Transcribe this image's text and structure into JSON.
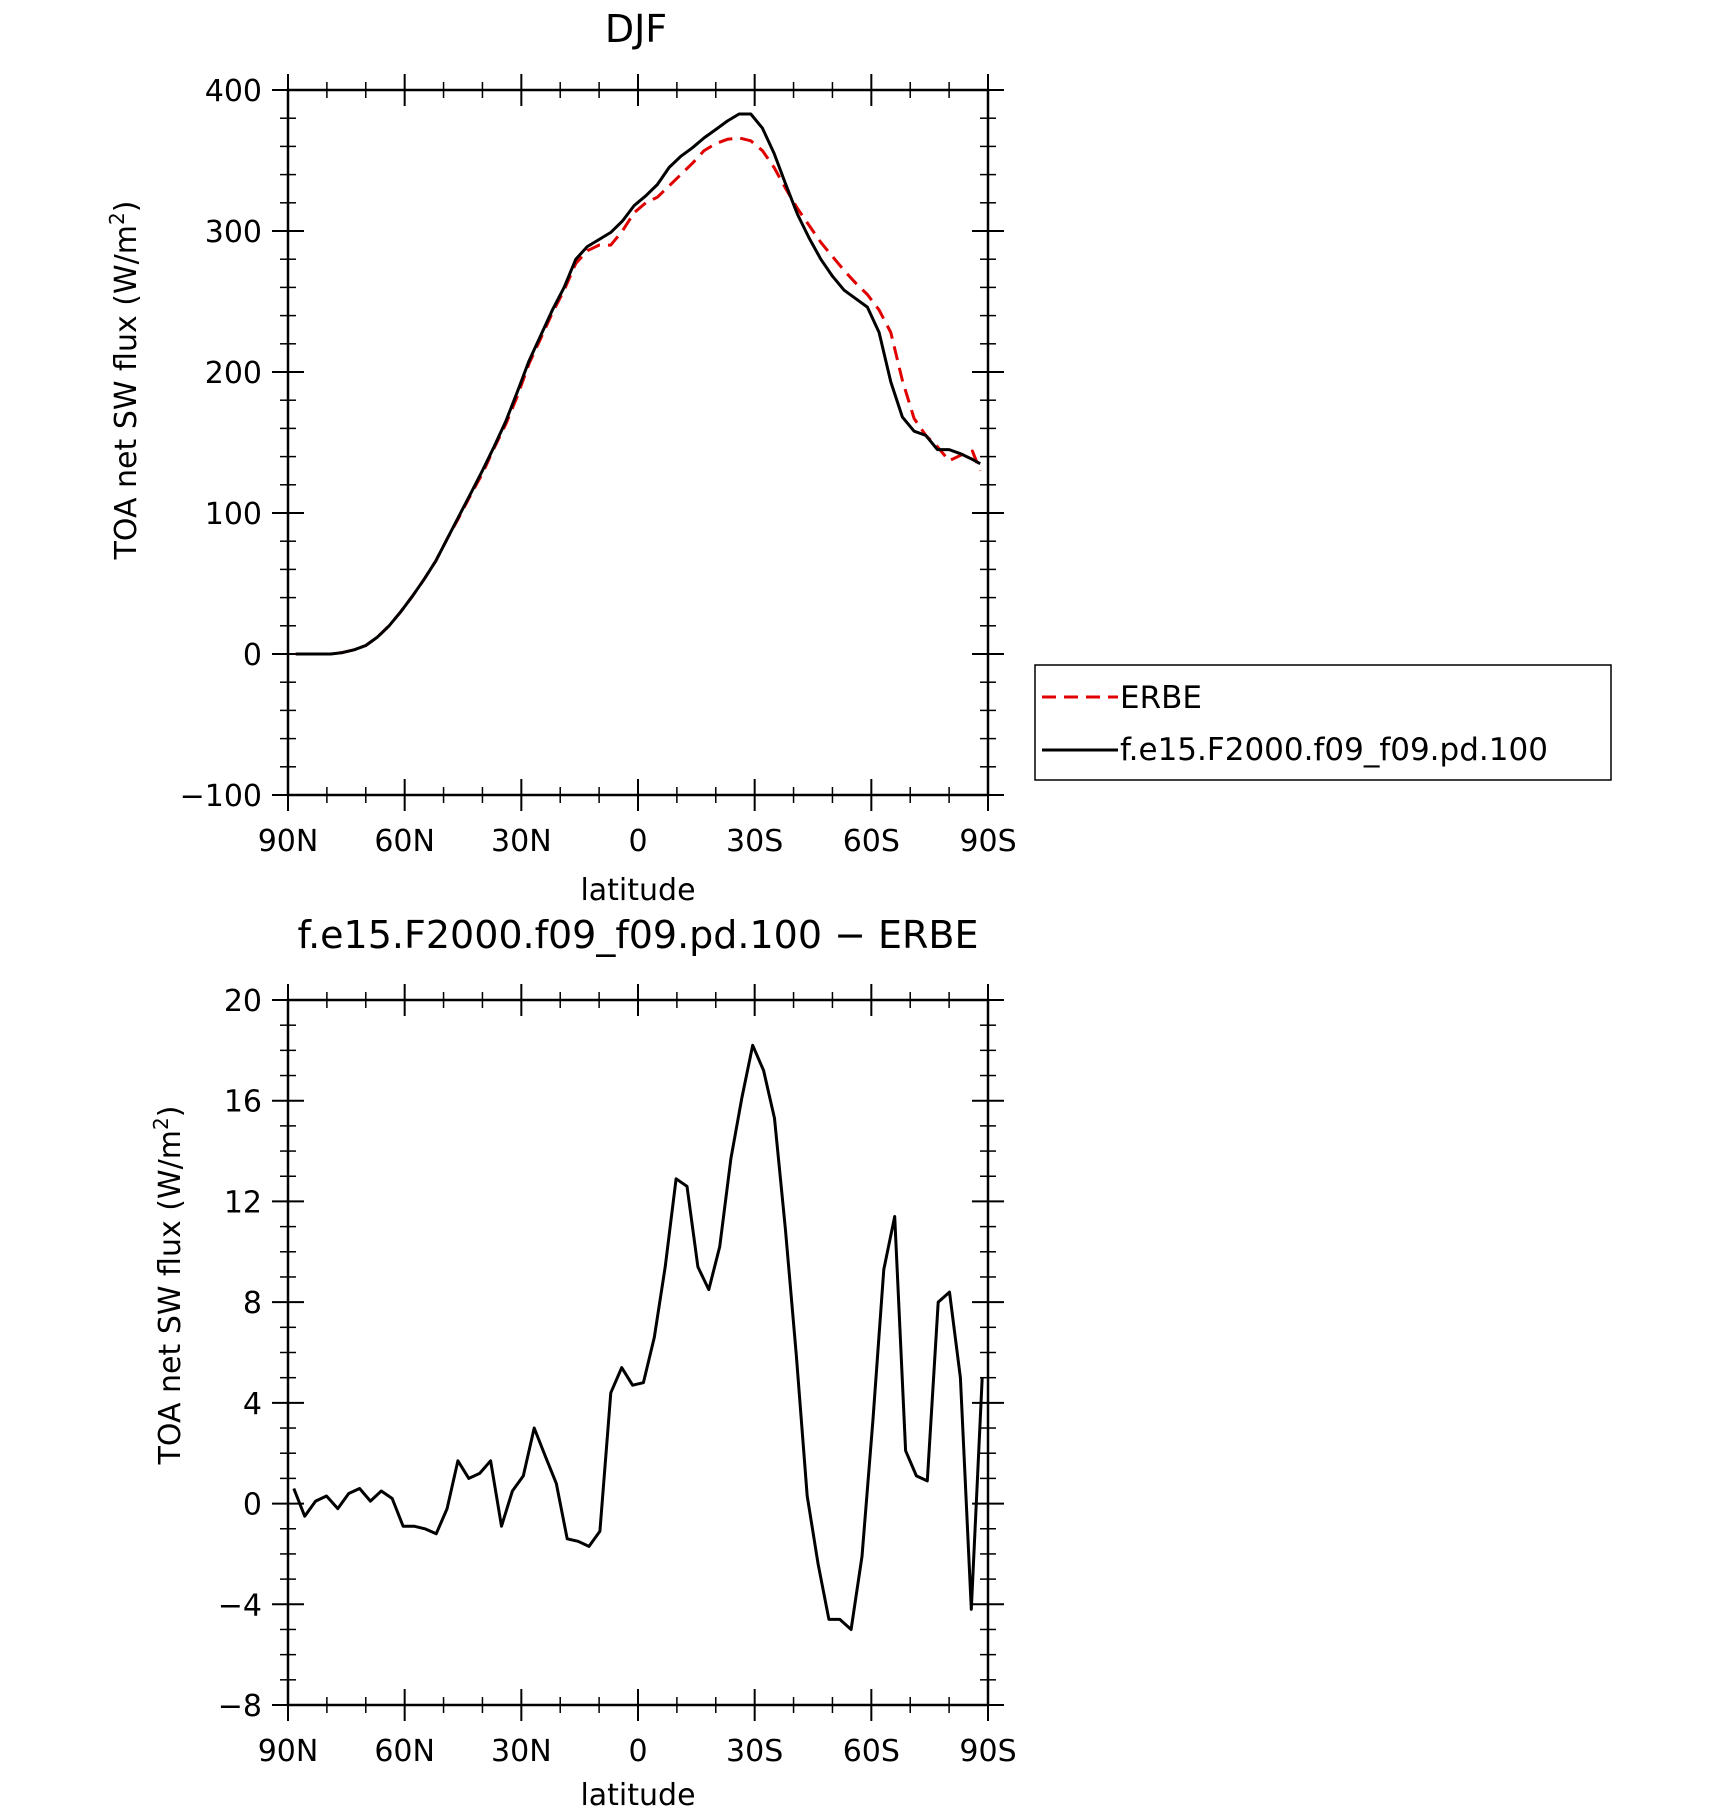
{
  "chart_data": [
    {
      "type": "line",
      "title": "DJF",
      "xlabel": "latitude",
      "ylabel": "TOA net SW flux (W/m",
      "ylabel_sup": "2",
      "ylabel_close": ")",
      "xlim": [
        90,
        -90
      ],
      "ylim": [
        -100,
        400
      ],
      "yticks": [
        {
          "value": 400,
          "label": "400"
        },
        {
          "value": 300,
          "label": "300"
        },
        {
          "value": 200,
          "label": "200"
        },
        {
          "value": 100,
          "label": "100"
        },
        {
          "value": 0,
          "label": "0"
        },
        {
          "value": -100,
          "label": "−100"
        }
      ],
      "xticks": [
        {
          "value": 90,
          "label": "90N"
        },
        {
          "value": 60,
          "label": "60N"
        },
        {
          "value": 30,
          "label": "30N"
        },
        {
          "value": 0,
          "label": "0"
        },
        {
          "value": -30,
          "label": "30S"
        },
        {
          "value": -60,
          "label": "60S"
        },
        {
          "value": -90,
          "label": "90S"
        }
      ],
      "legend": {
        "position": "right",
        "entries": [
          {
            "name": "ERBE",
            "color": "#e00000",
            "dash": "dashed"
          },
          {
            "name": "f.e15.F2000.f09_f09.pd.100",
            "color": "#000000",
            "dash": "solid"
          }
        ]
      },
      "series": [
        {
          "name": "ERBE",
          "color": "#e00000",
          "x": [
            88,
            85,
            82,
            79,
            76,
            73,
            70,
            67,
            64,
            61,
            58,
            55,
            52,
            49,
            46,
            43,
            40,
            37,
            34,
            31,
            28,
            25,
            22,
            19,
            16,
            13,
            10,
            7,
            4,
            1,
            -2,
            -5,
            -8,
            -11,
            -14,
            -17,
            -20,
            -23,
            -26,
            -29,
            -32,
            -35,
            -38,
            -41,
            -44,
            -47,
            -50,
            -53,
            -56,
            -59,
            -62,
            -65,
            -68,
            -71,
            -74,
            -77,
            -80,
            -83,
            -86,
            -88
          ],
          "y": [
            0,
            0,
            0,
            0,
            1,
            3,
            6,
            12,
            20,
            30,
            41,
            53,
            66,
            82,
            97,
            113,
            128,
            146,
            163,
            183,
            206,
            224,
            242,
            258,
            277,
            286,
            290,
            290,
            300,
            313,
            320,
            324,
            332,
            340,
            348,
            357,
            362,
            365,
            366,
            364,
            357,
            345,
            330,
            316,
            304,
            292,
            282,
            272,
            263,
            255,
            244,
            228,
            194,
            167,
            155,
            147,
            137,
            141,
            144,
            130
          ]
        },
        {
          "name": "f.e15.F2000.f09_f09.pd.100",
          "color": "#000000",
          "x": [
            88,
            85,
            82,
            79,
            76,
            73,
            70,
            67,
            64,
            61,
            58,
            55,
            52,
            49,
            46,
            43,
            40,
            37,
            34,
            31,
            28,
            25,
            22,
            19,
            16,
            13,
            10,
            7,
            4,
            1,
            -2,
            -5,
            -8,
            -11,
            -14,
            -17,
            -20,
            -23,
            -26,
            -29,
            -32,
            -35,
            -38,
            -41,
            -44,
            -47,
            -50,
            -53,
            -56,
            -59,
            -62,
            -65,
            -68,
            -71,
            -74,
            -77,
            -80,
            -83,
            -86,
            -88
          ],
          "y": [
            0,
            0,
            0,
            0,
            1,
            3,
            6,
            12,
            20,
            30,
            41,
            53,
            66,
            82,
            98,
            114,
            130,
            147,
            165,
            186,
            208,
            226,
            244,
            260,
            280,
            289,
            294,
            299,
            307,
            318,
            325,
            333,
            345,
            353,
            359,
            366,
            372,
            378,
            383,
            383,
            373,
            355,
            333,
            312,
            295,
            280,
            268,
            258,
            252,
            246,
            228,
            193,
            168,
            158,
            155,
            145,
            145,
            142,
            138,
            135
          ]
        }
      ]
    },
    {
      "type": "line",
      "title": "f.e15.F2000.f09_f09.pd.100 − ERBE",
      "xlabel": "latitude",
      "ylabel": "TOA net SW flux (W/m",
      "ylabel_sup": "2",
      "ylabel_close": ")",
      "xlim": [
        90,
        -90
      ],
      "ylim": [
        -8,
        20
      ],
      "yticks": [
        {
          "value": 20,
          "label": "20"
        },
        {
          "value": 16,
          "label": "16"
        },
        {
          "value": 12,
          "label": "12"
        },
        {
          "value": 8,
          "label": "8"
        },
        {
          "value": 4,
          "label": "4"
        },
        {
          "value": 0,
          "label": "0"
        },
        {
          "value": -4,
          "label": "−4"
        },
        {
          "value": -8,
          "label": "−8"
        }
      ],
      "xticks": [
        {
          "value": 90,
          "label": "90N"
        },
        {
          "value": 60,
          "label": "60N"
        },
        {
          "value": 30,
          "label": "30N"
        },
        {
          "value": 0,
          "label": "0"
        },
        {
          "value": -30,
          "label": "30S"
        },
        {
          "value": -60,
          "label": "60S"
        },
        {
          "value": -90,
          "label": "90S"
        }
      ],
      "series": [
        {
          "color": "#000000",
          "x": [
            88.5,
            85.7,
            82.9,
            80.1,
            77.2,
            74.4,
            71.6,
            68.8,
            66,
            63.2,
            60.4,
            57.6,
            54.8,
            51.9,
            49.1,
            46.3,
            43.5,
            40.7,
            37.9,
            35.1,
            32.3,
            29.5,
            26.7,
            23.9,
            21,
            18.2,
            15.4,
            12.6,
            9.8,
            7,
            4.2,
            1.4,
            -1.4,
            -4.2,
            -7,
            -9.8,
            -12.6,
            -15.4,
            -18.2,
            -21,
            -23.9,
            -26.7,
            -29.5,
            -32.3,
            -35.1,
            -37.9,
            -40.7,
            -43.5,
            -46.3,
            -49.1,
            -51.9,
            -54.8,
            -57.6,
            -60.4,
            -63.2,
            -66,
            -68.8,
            -71.6,
            -74.4,
            -77.2,
            -80.1,
            -82.9,
            -85.7,
            -88.5
          ],
          "y": [
            0.6,
            -0.5,
            0.1,
            0.3,
            -0.2,
            0.4,
            0.6,
            0.1,
            0.5,
            0.2,
            -0.9,
            -0.9,
            -1.0,
            -1.2,
            -0.2,
            1.7,
            1.0,
            1.2,
            1.7,
            -0.9,
            0.5,
            1.1,
            3.0,
            1.9,
            0.8,
            -1.4,
            -1.5,
            -1.7,
            -1.1,
            4.4,
            5.4,
            4.7,
            4.8,
            6.6,
            9.4,
            12.9,
            12.6,
            9.4,
            8.5,
            10.2,
            13.7,
            16.1,
            18.2,
            17.2,
            15.3,
            10.9,
            5.9,
            0.3,
            -2.4,
            -4.6,
            -4.6,
            -5.0,
            -2.1,
            3.3,
            9.3,
            11.4,
            2.1,
            1.1,
            0.9,
            8.0,
            8.4,
            5.0,
            -4.2,
            5.0
          ]
        }
      ]
    }
  ]
}
